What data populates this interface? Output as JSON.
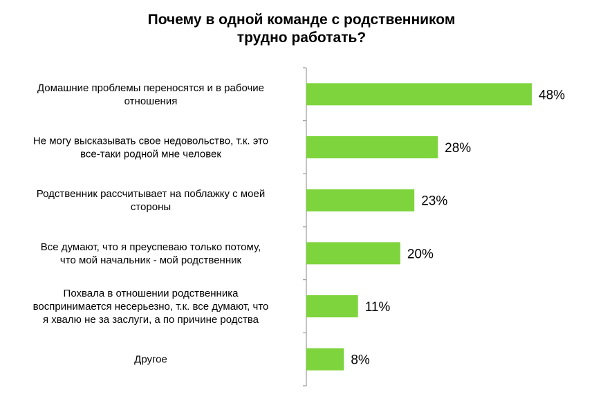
{
  "chart_data": {
    "type": "bar",
    "orientation": "horizontal",
    "title": "Почему в одной команде с родственником\nтрудно работать?",
    "categories": [
      [
        "Домашние проблемы переносятся и в рабочие",
        "отношения"
      ],
      [
        "Не могу высказывать свое недовольство, т.к. это",
        "все-таки родной мне человек"
      ],
      [
        "Родственник рассчитывает на поблажку с моей",
        "стороны"
      ],
      [
        "Все думают, что я преуспеваю только потому,",
        "что мой начальник - мой родственник"
      ],
      [
        "Похвала в отношении родственника",
        "воспринимается несерьезно, т.к. все думают, что",
        "я хвалю не за заслуги, а по причине родства"
      ],
      [
        "Другое"
      ]
    ],
    "values": [
      48,
      28,
      23,
      20,
      11,
      8
    ],
    "data_labels": [
      "48%",
      "28%",
      "23%",
      "20%",
      "11%",
      "8%"
    ],
    "xlim": [
      0,
      50
    ],
    "grid": false,
    "legend": "none",
    "bar_color": "#7ed43c",
    "axis_color": "#868686"
  }
}
